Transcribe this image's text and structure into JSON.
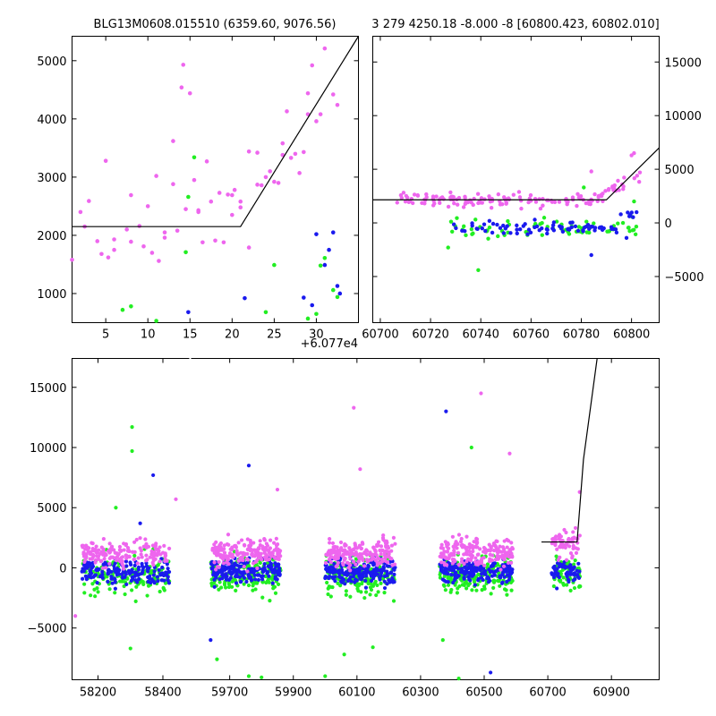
{
  "colors": {
    "magenta": "#ee66ee",
    "blue": "#1a1aee",
    "green": "#22ee22",
    "model": "#000000"
  },
  "chart_data": [
    {
      "id": "top-left",
      "type": "scatter",
      "title": "BLG13M0608.015510 (6359.60, 9076.56)",
      "xlim": [
        1,
        35
      ],
      "ylim": [
        500,
        5420
      ],
      "xticks": [
        "5",
        "10",
        "15",
        "20",
        "25",
        "30"
      ],
      "xtick_values": [
        5,
        10,
        15,
        20,
        25,
        30
      ],
      "yticks": [
        "1000",
        "2000",
        "3000",
        "4000",
        "5000"
      ],
      "ytick_values": [
        1000,
        2000,
        3000,
        4000,
        5000
      ],
      "x_offset_label": "+6.077e4",
      "model_line": {
        "x": [
          1,
          21,
          35
        ],
        "y": [
          2150,
          2150,
          5420
        ]
      },
      "series": [
        {
          "color": "magenta",
          "points": [
            [
              1,
              1580
            ],
            [
              2,
              2400
            ],
            [
              2.5,
              2150
            ],
            [
              3,
              2590
            ],
            [
              4,
              1900
            ],
            [
              4.5,
              1680
            ],
            [
              5,
              3280
            ],
            [
              5.3,
              1620
            ],
            [
              6,
              1750
            ],
            [
              6,
              1930
            ],
            [
              7.5,
              2100
            ],
            [
              8,
              2690
            ],
            [
              8,
              1890
            ],
            [
              9,
              2160
            ],
            [
              9.5,
              1810
            ],
            [
              10,
              2500
            ],
            [
              10.5,
              1700
            ],
            [
              11,
              3020
            ],
            [
              11.3,
              1560
            ],
            [
              12,
              1960
            ],
            [
              12,
              2050
            ],
            [
              13,
              2880
            ],
            [
              13,
              3620
            ],
            [
              13.5,
              2080
            ],
            [
              14,
              4540
            ],
            [
              14.2,
              4930
            ],
            [
              14.5,
              2450
            ],
            [
              15,
              4440
            ],
            [
              15.5,
              2950
            ],
            [
              16,
              2430
            ],
            [
              16,
              2400
            ],
            [
              16.5,
              1880
            ],
            [
              17,
              3270
            ],
            [
              17.5,
              2580
            ],
            [
              18,
              1910
            ],
            [
              18.5,
              2730
            ],
            [
              19,
              1880
            ],
            [
              19.5,
              2700
            ],
            [
              20,
              2690
            ],
            [
              20,
              2350
            ],
            [
              20.3,
              2780
            ],
            [
              21,
              2580
            ],
            [
              21,
              2480
            ],
            [
              22,
              3440
            ],
            [
              22,
              1790
            ],
            [
              23,
              3420
            ],
            [
              23,
              2870
            ],
            [
              23.5,
              2860
            ],
            [
              24,
              3000
            ],
            [
              24.5,
              3100
            ],
            [
              25,
              2920
            ],
            [
              25.5,
              2900
            ],
            [
              26,
              3580
            ],
            [
              26,
              3380
            ],
            [
              26.5,
              4130
            ],
            [
              27,
              3330
            ],
            [
              27.5,
              3400
            ],
            [
              28,
              3070
            ],
            [
              28.5,
              3430
            ],
            [
              29,
              4080
            ],
            [
              29,
              4440
            ],
            [
              29.5,
              4920
            ],
            [
              30,
              3960
            ],
            [
              30.5,
              4080
            ],
            [
              31,
              5210
            ],
            [
              32,
              4420
            ],
            [
              32.5,
              4240
            ]
          ]
        },
        {
          "color": "green",
          "points": [
            [
              7,
              720
            ],
            [
              8,
              780
            ],
            [
              11,
              530
            ],
            [
              14.5,
              1710
            ],
            [
              14.8,
              2660
            ],
            [
              15.5,
              3340
            ],
            [
              24,
              680
            ],
            [
              25,
              1490
            ],
            [
              29,
              570
            ],
            [
              30,
              650
            ],
            [
              30.5,
              1480
            ],
            [
              31,
              1610
            ],
            [
              32,
              1060
            ],
            [
              32.5,
              940
            ]
          ]
        },
        {
          "color": "blue",
          "points": [
            [
              14.8,
              680
            ],
            [
              21.5,
              920
            ],
            [
              28.5,
              930
            ],
            [
              29.5,
              800
            ],
            [
              30,
              2020
            ],
            [
              31,
              1490
            ],
            [
              31.5,
              1750
            ],
            [
              32,
              2050
            ],
            [
              32.5,
              1130
            ],
            [
              32.8,
              1000
            ]
          ]
        }
      ]
    },
    {
      "id": "top-right",
      "type": "scatter",
      "title": "3 279 4250.18 -8.000 -8 [60800.423, 60802.010]",
      "xlim": [
        60697,
        60811
      ],
      "ylim": [
        -9300,
        17400
      ],
      "xticks": [
        "60700",
        "60720",
        "60740",
        "60760",
        "60780",
        "60800"
      ],
      "xtick_values": [
        60700,
        60720,
        60740,
        60760,
        60780,
        60800
      ],
      "yticks": [
        "−5000",
        "0",
        "5000",
        "10000",
        "15000"
      ],
      "ytick_values": [
        -5000,
        0,
        5000,
        10000,
        15000
      ],
      "model_line": {
        "x": [
          60697,
          60790,
          60811
        ],
        "y": [
          2150,
          2150,
          7000
        ]
      }
    },
    {
      "id": "bottom",
      "type": "scatter",
      "ylim": [
        -9300,
        17400
      ],
      "xticks": [
        "58200",
        "58400",
        "59700",
        "59900",
        "60100",
        "60300",
        "60500",
        "60700",
        "60900"
      ],
      "yticks": [
        "−5000",
        "0",
        "5000",
        "10000",
        "15000"
      ],
      "ytick_values": [
        -5000,
        0,
        5000,
        10000,
        15000
      ],
      "model_line_segment": {
        "flat_y": 2150
      }
    }
  ]
}
